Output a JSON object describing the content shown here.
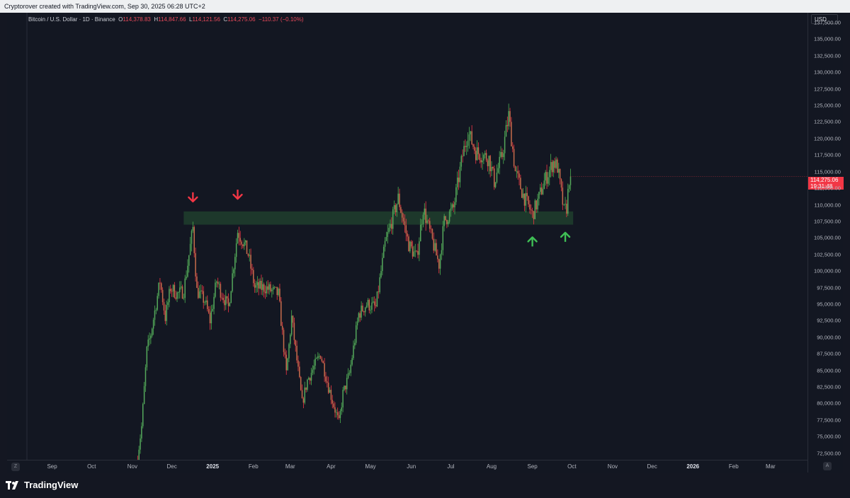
{
  "header": {
    "attribution": "Cryptorover created with TradingView.com, Sep 30, 2025 06:28 UTC+2"
  },
  "legend": {
    "symbol": "Bitcoin / U.S. Dollar · 1D · Binance",
    "o_label": "O",
    "o_value": "114,378.83",
    "h_label": "H",
    "h_value": "114,847.66",
    "l_label": "L",
    "l_value": "114,121.56",
    "c_label": "C",
    "c_value": "114,275.06",
    "change": "−110.37 (−0.10%)"
  },
  "price_axis": {
    "currency": "USD",
    "ticks": [
      "137,500.00",
      "135,000.00",
      "132,500.00",
      "130,000.00",
      "127,500.00",
      "125,000.00",
      "122,500.00",
      "120,000.00",
      "117,500.00",
      "115,000.00",
      "112,500.00",
      "110,000.00",
      "107,500.00",
      "105,000.00",
      "102,500.00",
      "100,000.00",
      "97,500.00",
      "95,000.00",
      "92,500.00",
      "90,000.00",
      "87,500.00",
      "85,000.00",
      "82,500.00",
      "80,000.00",
      "77,500.00",
      "75,000.00",
      "72,500.00"
    ],
    "current_price": "114,275.06",
    "countdown": "19:31:48"
  },
  "time_axis": {
    "corner_left": "Z",
    "corner_right": "A",
    "labels": [
      {
        "text": "Sep",
        "bold": false
      },
      {
        "text": "Oct",
        "bold": false
      },
      {
        "text": "Nov",
        "bold": false
      },
      {
        "text": "Dec",
        "bold": false
      },
      {
        "text": "2025",
        "bold": true
      },
      {
        "text": "Feb",
        "bold": false
      },
      {
        "text": "Mar",
        "bold": false
      },
      {
        "text": "Apr",
        "bold": false
      },
      {
        "text": "May",
        "bold": false
      },
      {
        "text": "Jun",
        "bold": false
      },
      {
        "text": "Jul",
        "bold": false
      },
      {
        "text": "Aug",
        "bold": false
      },
      {
        "text": "Sep",
        "bold": false
      },
      {
        "text": "Oct",
        "bold": false
      },
      {
        "text": "Nov",
        "bold": false
      },
      {
        "text": "Dec",
        "bold": false
      },
      {
        "text": "2026",
        "bold": true
      },
      {
        "text": "Feb",
        "bold": false
      },
      {
        "text": "Mar",
        "bold": false
      }
    ]
  },
  "annotations": {
    "support_zone": {
      "low": 107000,
      "high": 109000,
      "from": "2024-12-10",
      "to": "2025-10-02",
      "color": "#1e3a2c"
    },
    "arrows_down": [
      {
        "date": "2024-12-17",
        "price": 110500,
        "color": "#f23645"
      },
      {
        "date": "2025-01-20",
        "price": 110900,
        "color": "#f23645"
      }
    ],
    "arrows_up": [
      {
        "date": "2025-09-01",
        "price": 105100,
        "color": "#3fbf55"
      },
      {
        "date": "2025-09-26",
        "price": 105800,
        "color": "#3fbf55"
      }
    ]
  },
  "chart_data": {
    "type": "candlestick",
    "symbol": "BTCUSD",
    "interval": "1D",
    "ylim": [
      71500,
      139000
    ],
    "up_color": "#4caf50",
    "down_color": "#f23645",
    "anchors": [
      [
        "2024-11-05",
        72000
      ],
      [
        "2024-11-08",
        76500
      ],
      [
        "2024-11-12",
        88000
      ],
      [
        "2024-11-15",
        90500
      ],
      [
        "2024-11-22",
        98500
      ],
      [
        "2024-11-26",
        93000
      ],
      [
        "2024-11-30",
        97500
      ],
      [
        "2024-12-05",
        96500
      ],
      [
        "2024-12-10",
        97000
      ],
      [
        "2024-12-17",
        106500
      ],
      [
        "2024-12-20",
        97000
      ],
      [
        "2024-12-26",
        95500
      ],
      [
        "2024-12-30",
        92500
      ],
      [
        "2025-01-04",
        98500
      ],
      [
        "2025-01-07",
        97000
      ],
      [
        "2025-01-13",
        94500
      ],
      [
        "2025-01-20",
        106000
      ],
      [
        "2025-01-24",
        104500
      ],
      [
        "2025-01-28",
        102500
      ],
      [
        "2025-02-02",
        97500
      ],
      [
        "2025-02-10",
        97500
      ],
      [
        "2025-02-20",
        96500
      ],
      [
        "2025-02-26",
        84500
      ],
      [
        "2025-03-02",
        93000
      ],
      [
        "2025-03-10",
        80000
      ],
      [
        "2025-03-14",
        83500
      ],
      [
        "2025-03-24",
        87500
      ],
      [
        "2025-03-30",
        82500
      ],
      [
        "2025-04-07",
        77000
      ],
      [
        "2025-04-10",
        81500
      ],
      [
        "2025-04-15",
        84500
      ],
      [
        "2025-04-22",
        93500
      ],
      [
        "2025-04-28",
        95000
      ],
      [
        "2025-05-05",
        94500
      ],
      [
        "2025-05-12",
        104000
      ],
      [
        "2025-05-22",
        111000
      ],
      [
        "2025-05-30",
        104000
      ],
      [
        "2025-06-05",
        102000
      ],
      [
        "2025-06-10",
        109500
      ],
      [
        "2025-06-17",
        104500
      ],
      [
        "2025-06-22",
        101000
      ],
      [
        "2025-06-26",
        107500
      ],
      [
        "2025-07-03",
        109500
      ],
      [
        "2025-07-10",
        117500
      ],
      [
        "2025-07-14",
        121000
      ],
      [
        "2025-07-20",
        118000
      ],
      [
        "2025-07-30",
        117000
      ],
      [
        "2025-08-03",
        113500
      ],
      [
        "2025-08-09",
        117500
      ],
      [
        "2025-08-14",
        123500
      ],
      [
        "2025-08-19",
        115000
      ],
      [
        "2025-08-25",
        111500
      ],
      [
        "2025-09-01",
        108500
      ],
      [
        "2025-09-05",
        110500
      ],
      [
        "2025-09-10",
        113500
      ],
      [
        "2025-09-17",
        116500
      ],
      [
        "2025-09-20",
        115700
      ],
      [
        "2025-09-25",
        109000
      ],
      [
        "2025-09-27",
        109600
      ],
      [
        "2025-09-29",
        114000
      ],
      [
        "2025-09-30",
        114275
      ]
    ]
  }
}
